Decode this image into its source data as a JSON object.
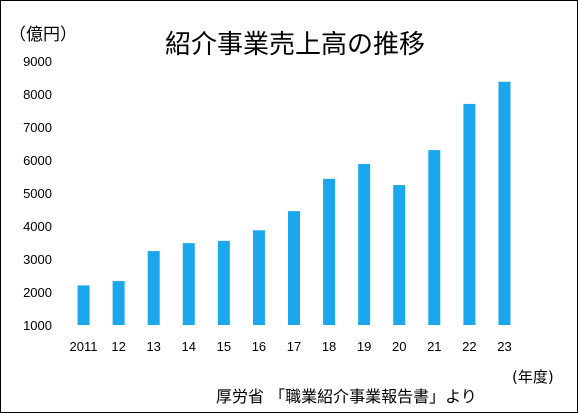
{
  "chart_data": {
    "type": "bar",
    "title": "紹介事業売上高の推移",
    "ylabel": "（億円）",
    "xlabel": "(年度)",
    "source": "厚労省 「職業紹介事業報告書」より",
    "categories": [
      "2011",
      "12",
      "13",
      "14",
      "15",
      "16",
      "17",
      "18",
      "19",
      "20",
      "21",
      "22",
      "23"
    ],
    "values": [
      2200,
      2330,
      3240,
      3480,
      3550,
      3870,
      4450,
      5430,
      5880,
      5240,
      6300,
      7700,
      8370
    ],
    "ylim": [
      1000,
      9000
    ],
    "yticks": [
      1000,
      2000,
      3000,
      4000,
      5000,
      6000,
      7000,
      8000,
      9000
    ],
    "bar_color": "#1aa7ec",
    "grid": false
  }
}
